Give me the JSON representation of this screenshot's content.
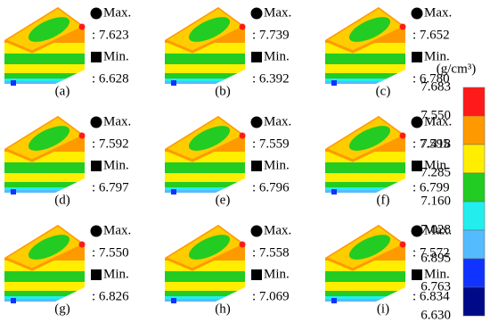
{
  "panels": [
    {
      "label": "(a)",
      "max_title": "Max.",
      "max": ": 7.623",
      "min_title": "Min.",
      "min": ": 6.628"
    },
    {
      "label": "(b)",
      "max_title": "Max.",
      "max": ": 7.739",
      "min_title": "Min.",
      "min": ": 6.392"
    },
    {
      "label": "(c)",
      "max_title": "Max.",
      "max": ": 7.652",
      "min_title": "Min.",
      "min": ": 6.780"
    },
    {
      "label": "(d)",
      "max_title": "Max.",
      "max": ": 7.592",
      "min_title": "Min.",
      "min": ": 6.797"
    },
    {
      "label": "(e)",
      "max_title": "Max.",
      "max": ": 7.559",
      "min_title": "Min.",
      "min": ": 6.796"
    },
    {
      "label": "(f)",
      "max_title": "Max.",
      "max": ": 7.595",
      "min_title": "Min.",
      "min": ": 6.799"
    },
    {
      "label": "(g)",
      "max_title": "Max.",
      "max": ": 7.550",
      "min_title": "Min.",
      "min": ": 6.826"
    },
    {
      "label": "(h)",
      "max_title": "Max.",
      "max": ": 7.558",
      "min_title": "Min.",
      "min": ": 7.069"
    },
    {
      "label": "(i)",
      "max_title": "Max.",
      "max": ": 7.572",
      "min_title": "Min.",
      "min": ": 6.834"
    }
  ],
  "legend": {
    "unit": "(g/cm³)",
    "levels": [
      "7.683",
      "7.550",
      "7.418",
      "7.285",
      "7.160",
      "7.028",
      "6.895",
      "6.763",
      "6.630"
    ],
    "colors": [
      "#ff1a1a",
      "#ff9900",
      "#ffee00",
      "#22cc22",
      "#22eeee",
      "#55bbff",
      "#1133ff",
      "#000a88"
    ]
  }
}
